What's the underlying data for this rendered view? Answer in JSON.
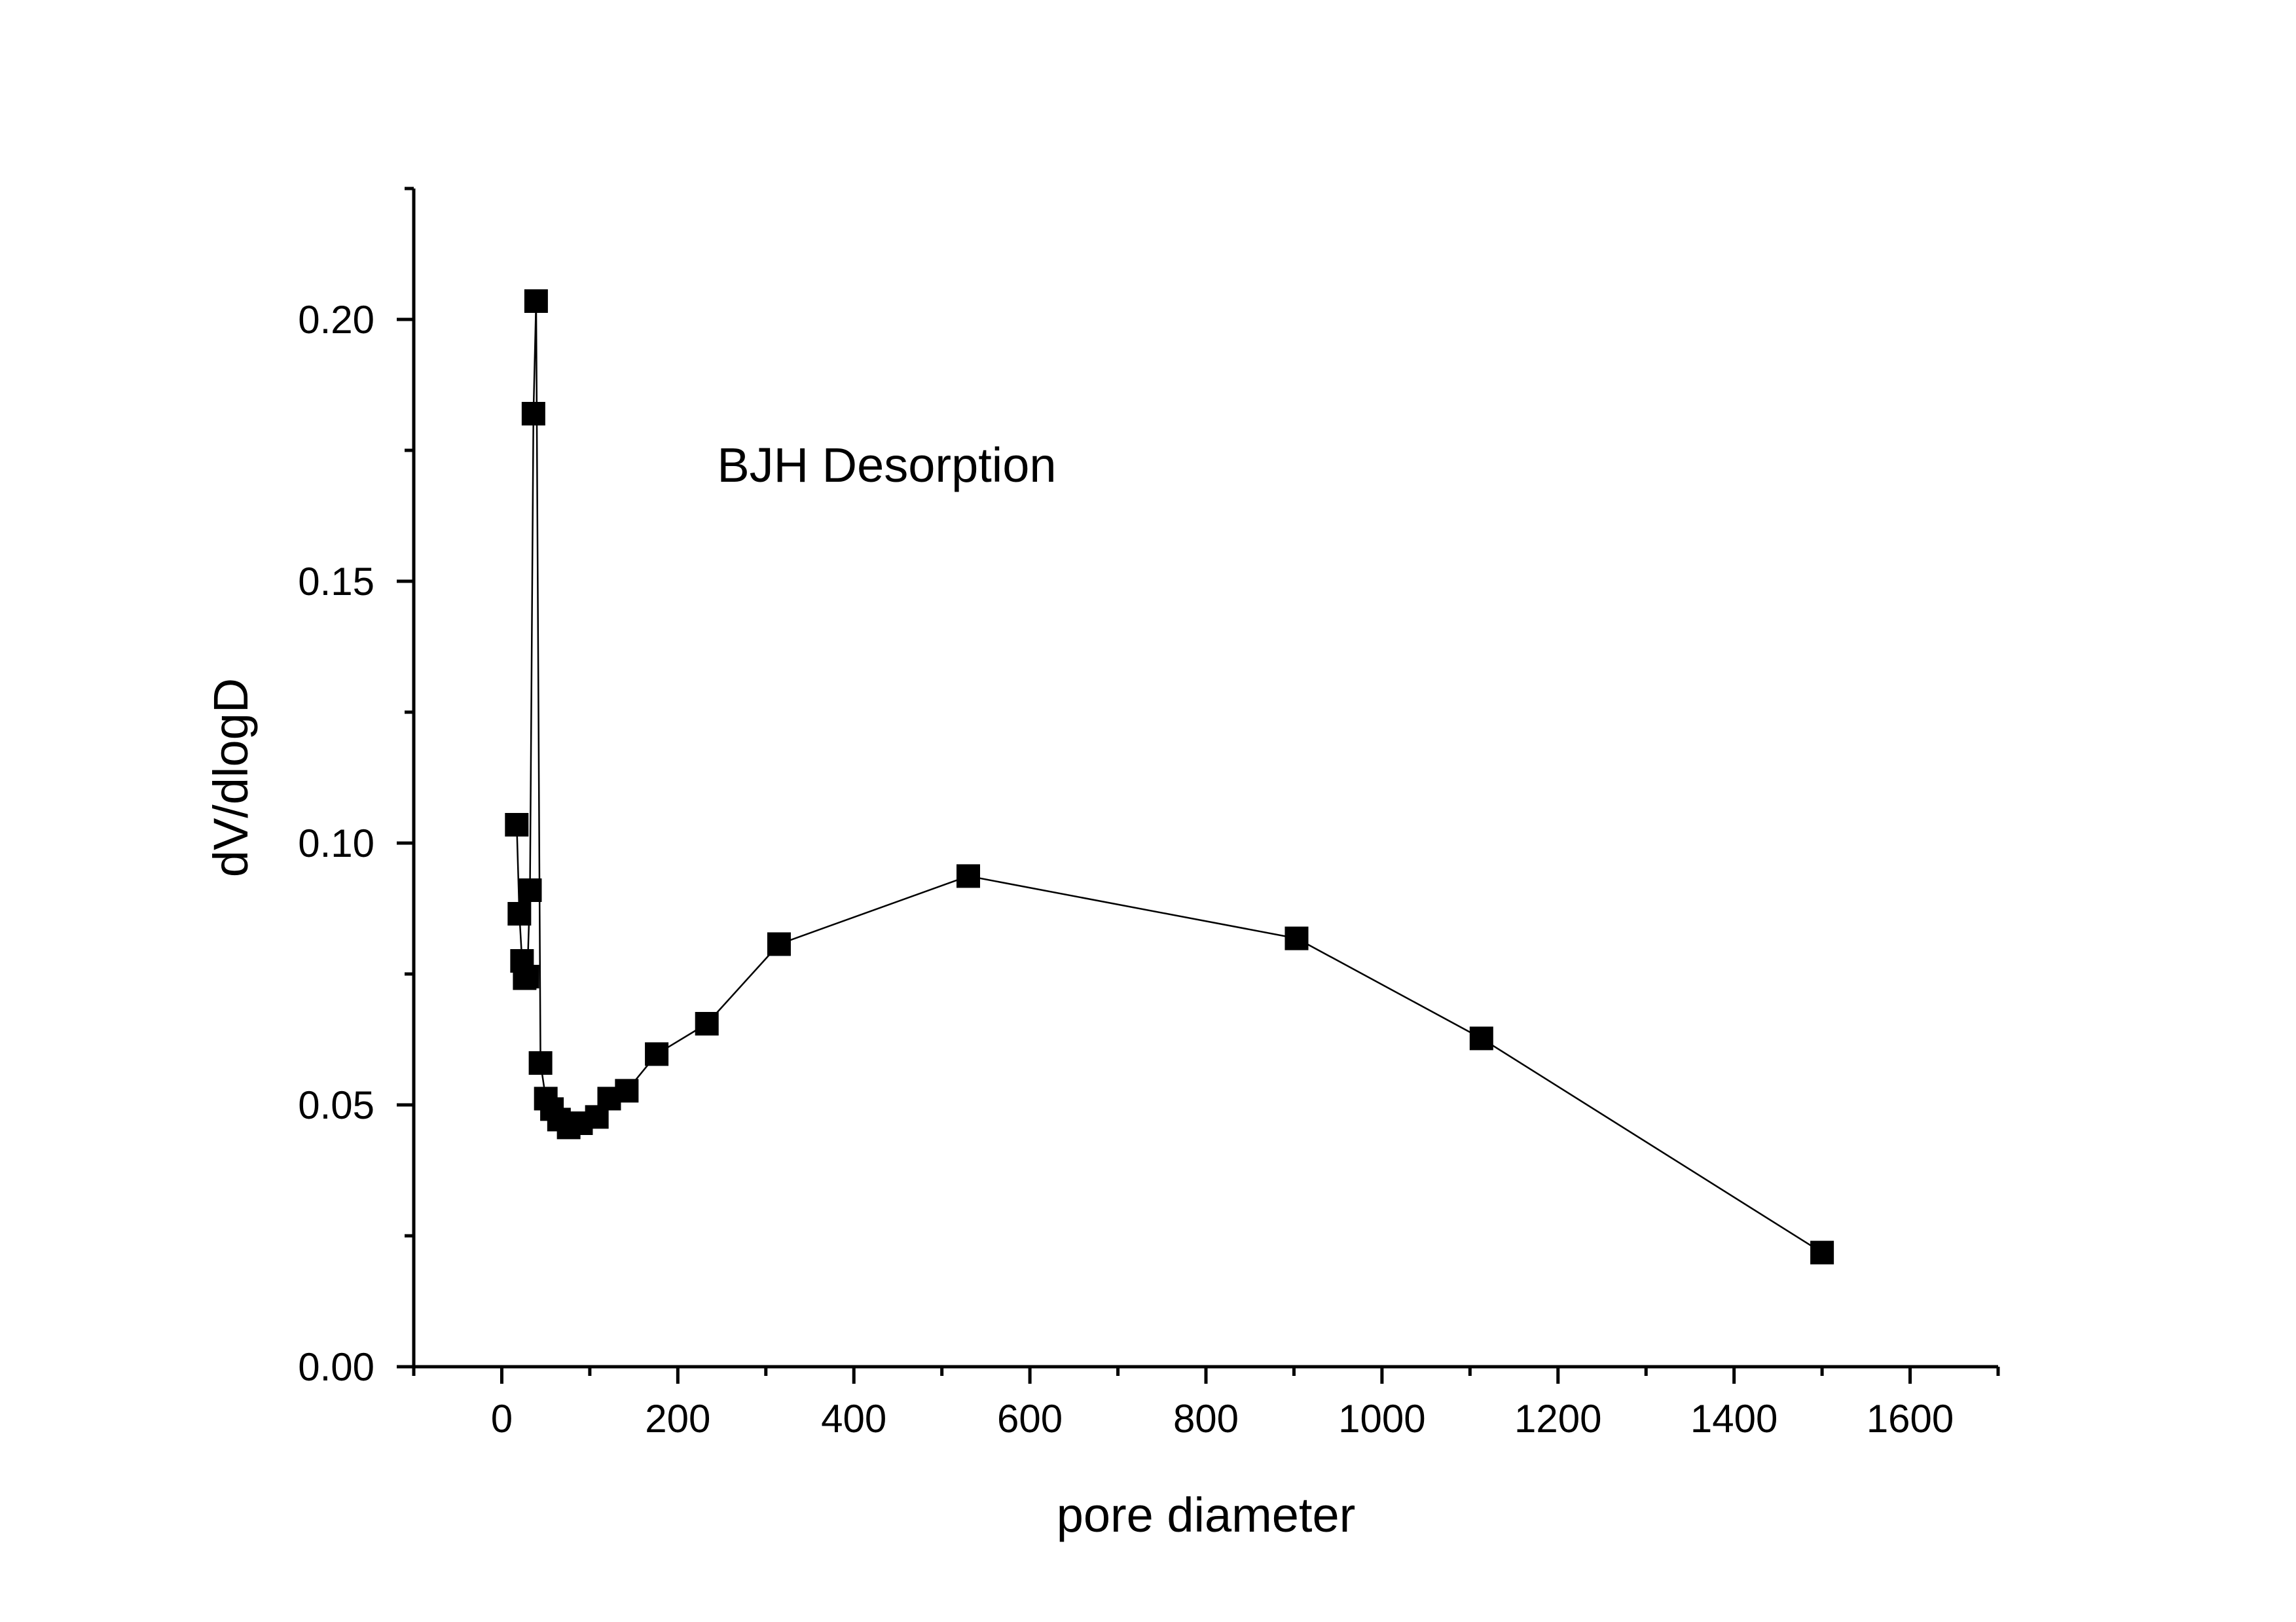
{
  "chart_data": {
    "type": "line",
    "title": "",
    "xlabel": "pore diameter",
    "ylabel": "dV/dlogD",
    "xlim": [
      -100,
      1700
    ],
    "ylim": [
      0,
      0.225
    ],
    "x_ticks": [
      0,
      200,
      400,
      600,
      800,
      1000,
      1200,
      1400,
      1600
    ],
    "x_tick_labels": [
      "0",
      "200",
      "400",
      "600",
      "800",
      "1000",
      "1200",
      "1400",
      "1600"
    ],
    "x_minor_ticks": [
      -100,
      100,
      300,
      500,
      700,
      900,
      1100,
      1300,
      1500,
      1700
    ],
    "y_ticks": [
      0,
      0.05,
      0.1,
      0.15,
      0.2
    ],
    "y_tick_labels": [
      "0.00",
      "0.05",
      "0.10",
      "0.15",
      "0.20"
    ],
    "y_minor_ticks": [
      0.025,
      0.075,
      0.125,
      0.175,
      0.225
    ],
    "grid": false,
    "marker": "square",
    "annotations": [
      {
        "text": "BJH Desorption",
        "x": 200,
        "y": 0.169
      }
    ],
    "series": [
      {
        "color": "#000000",
        "x": [
          17,
          20,
          23,
          26,
          29,
          32,
          36,
          39,
          44,
          50,
          57,
          65,
          76,
          90,
          108,
          122,
          142,
          176,
          233,
          315,
          530,
          903,
          1113,
          1500
        ],
        "y": [
          0.1035,
          0.0865,
          0.0775,
          0.0742,
          0.0745,
          0.091,
          0.182,
          0.2035,
          0.058,
          0.0512,
          0.0492,
          0.0472,
          0.0457,
          0.0465,
          0.0477,
          0.0512,
          0.0527,
          0.0597,
          0.0655,
          0.0807,
          0.0937,
          0.0818,
          0.0627,
          0.0218
        ]
      }
    ]
  }
}
